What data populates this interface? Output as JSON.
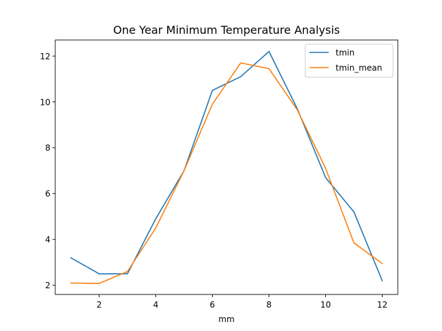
{
  "chart_data": {
    "type": "line",
    "title": "One Year Minimum Temperature Analysis",
    "xlabel": "mm",
    "ylabel": "",
    "xlim": [
      0.45,
      12.55
    ],
    "ylim": [
      1.6,
      12.7
    ],
    "x_ticks": [
      2,
      4,
      6,
      8,
      10,
      12
    ],
    "y_ticks": [
      2,
      4,
      6,
      8,
      10,
      12
    ],
    "grid": false,
    "legend_position": "top-right",
    "x": [
      1,
      2,
      3,
      4,
      5,
      6,
      7,
      8,
      9,
      10,
      11,
      12
    ],
    "series": [
      {
        "name": "tmin",
        "color": "#1f77b4",
        "values": [
          3.2,
          2.5,
          2.5,
          4.9,
          7.0,
          10.5,
          11.1,
          12.2,
          9.7,
          6.7,
          5.2,
          2.2
        ]
      },
      {
        "name": "tmin_mean",
        "color": "#ff7f0e",
        "values": [
          2.1,
          2.08,
          2.6,
          4.5,
          7.0,
          9.9,
          11.7,
          11.45,
          9.65,
          7.1,
          3.85,
          2.95
        ]
      }
    ]
  }
}
